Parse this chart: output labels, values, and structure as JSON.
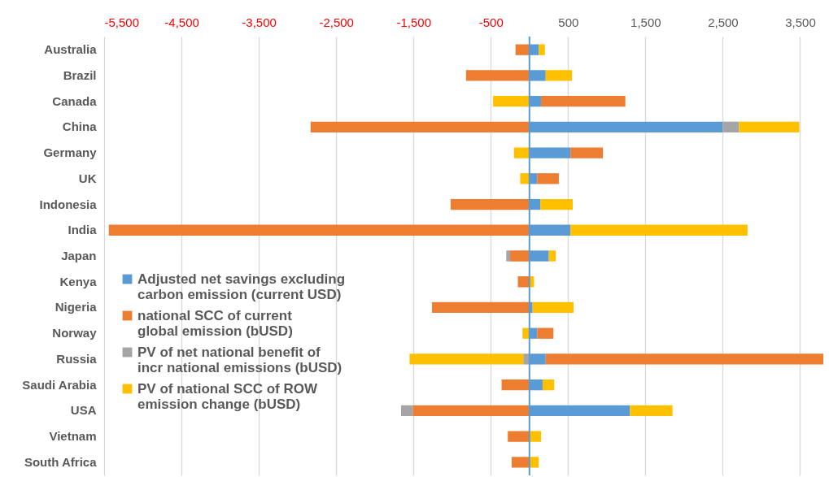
{
  "chart_data": {
    "type": "bar",
    "orientation": "horizontal",
    "stacked": true,
    "categories": [
      "Australia",
      "Brazil",
      "Canada",
      "China",
      "Germany",
      "UK",
      "Indonesia",
      "India",
      "Japan",
      "Kenya",
      "Nigeria",
      "Norway",
      "Russia",
      "Saudi Arabia",
      "USA",
      "Vietnam",
      "South Africa"
    ],
    "series": [
      {
        "name": "Adjusted net savings excluding carbon emission (current USD)",
        "color": "#5b9bd5",
        "values": [
          120,
          210,
          150,
          2500,
          530,
          100,
          140,
          530,
          250,
          null,
          40,
          100,
          210,
          170,
          1300,
          null,
          null
        ]
      },
      {
        "name": "national SCC of current global emission (bUSD)",
        "color": "#ed7d31",
        "values": [
          -180,
          -820,
          1090,
          -2830,
          420,
          280,
          -1020,
          -5440,
          -250,
          -150,
          -1260,
          210,
          3590,
          -360,
          -1510,
          -280,
          -230
        ]
      },
      {
        "name": "PV of net national benefit of incr national emissions (bUSD)",
        "color": "#a5a5a5",
        "values": [
          null,
          null,
          null,
          210,
          null,
          null,
          null,
          null,
          -50,
          null,
          null,
          null,
          -80,
          null,
          -150,
          null,
          null
        ]
      },
      {
        "name": "PV of national SCC of ROW emission change (bUSD)",
        "color": "#ffc000",
        "values": [
          80,
          340,
          -470,
          780,
          -200,
          -120,
          420,
          2290,
          90,
          60,
          530,
          -90,
          -1470,
          150,
          550,
          150,
          120
        ]
      }
    ],
    "xlim": [
      -5500,
      3800
    ],
    "xticks": [
      {
        "value": -5500,
        "label": "-5,500"
      },
      {
        "value": -4500,
        "label": "-4,500"
      },
      {
        "value": -3500,
        "label": "-3,500"
      },
      {
        "value": -2500,
        "label": "-2,500"
      },
      {
        "value": -1500,
        "label": "-1,500"
      },
      -500,
      500,
      {
        "value": 1500,
        "label": "1,500"
      },
      {
        "value": 2500,
        "label": "2,500"
      },
      {
        "value": 3500,
        "label": "3,500"
      }
    ],
    "ref_lines": [
      {
        "axis": "x",
        "value": 0,
        "color": "#5b9bd5"
      }
    ],
    "grid": "x",
    "legend": "left"
  }
}
